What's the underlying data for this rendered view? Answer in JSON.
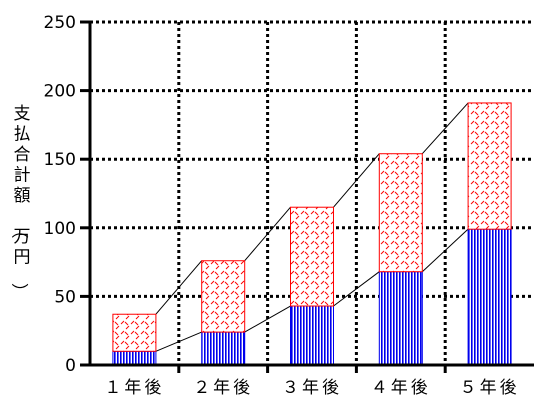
{
  "chart_data": {
    "type": "bar",
    "stacked": true,
    "categories": [
      "１年後",
      "２年後",
      "３年後",
      "４年後",
      "５年後"
    ],
    "series": [
      {
        "values": [
          10,
          24,
          43,
          68,
          99
        ],
        "color": "#0000ee",
        "pattern": "vertical-lines"
      },
      {
        "values": [
          27,
          52,
          72,
          86,
          92
        ],
        "color": "#ff0000",
        "pattern": "diagonal-dashes"
      }
    ],
    "connector_lines": true,
    "ylabel": "支払合計額（万円）",
    "ylim": [
      0,
      250
    ],
    "yticks": [
      0,
      50,
      100,
      150,
      200,
      250
    ],
    "grid": true
  }
}
